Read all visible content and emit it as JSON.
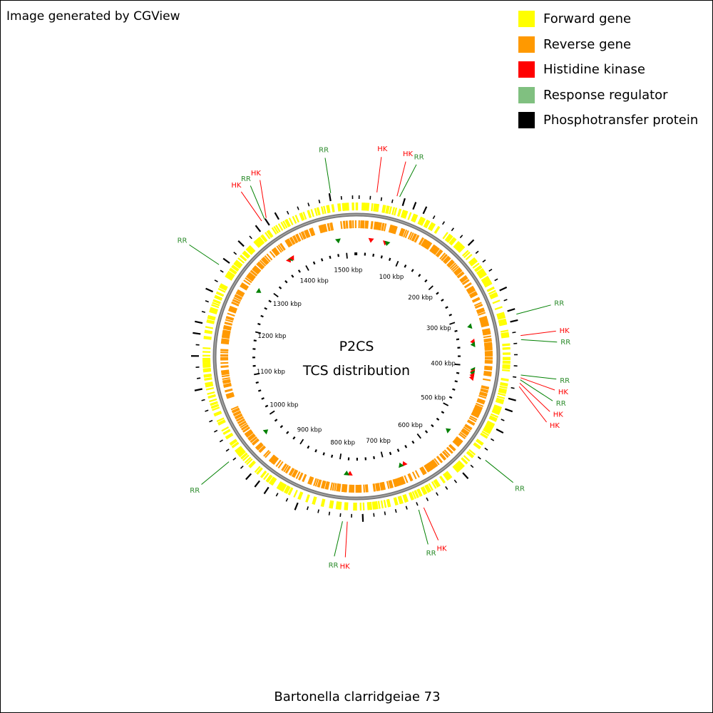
{
  "credit": "Image generated by CGView",
  "legend": [
    {
      "label": "Forward gene",
      "color": "#ffff00"
    },
    {
      "label": "Reverse gene",
      "color": "#ff9900"
    },
    {
      "label": "Histidine kinase",
      "color": "#ff0000"
    },
    {
      "label": "Response regulator",
      "color": "#80c080"
    },
    {
      "label": "Phosphotransfer protein",
      "color": "#000000"
    }
  ],
  "center_title": "P2CS",
  "center_subtitle": "TCS distribution",
  "organism": "Bartonella clarridgeiae 73",
  "genome_kbp": 1523,
  "tick_unit": "kbp",
  "major_ticks_kbp": [
    100,
    200,
    300,
    400,
    500,
    600,
    700,
    800,
    900,
    1000,
    1100,
    1200,
    1300,
    1400,
    1500
  ],
  "feature_labels": [
    {
      "text": "RR",
      "type": "RR",
      "pos_kbp": 1485
    },
    {
      "text": "HK",
      "type": "HK",
      "pos_kbp": 30
    },
    {
      "text": "HK",
      "type": "HK",
      "pos_kbp": 60
    },
    {
      "text": "RR",
      "type": "RR",
      "pos_kbp": 64
    },
    {
      "text": "RR",
      "type": "RR",
      "pos_kbp": 318
    },
    {
      "text": "HK",
      "type": "HK",
      "pos_kbp": 350
    },
    {
      "text": "RR",
      "type": "RR",
      "pos_kbp": 356
    },
    {
      "text": "RR",
      "type": "RR",
      "pos_kbp": 408
    },
    {
      "text": "HK",
      "type": "HK",
      "pos_kbp": 412
    },
    {
      "text": "RR",
      "type": "RR",
      "pos_kbp": 415
    },
    {
      "text": "HK",
      "type": "HK",
      "pos_kbp": 420
    },
    {
      "text": "HK",
      "type": "HK",
      "pos_kbp": 425
    },
    {
      "text": "RR",
      "type": "RR",
      "pos_kbp": 545
    },
    {
      "text": "HK",
      "type": "HK",
      "pos_kbp": 660
    },
    {
      "text": "RR",
      "type": "RR",
      "pos_kbp": 668
    },
    {
      "text": "HK",
      "type": "HK",
      "pos_kbp": 775
    },
    {
      "text": "RR",
      "type": "RR",
      "pos_kbp": 782
    },
    {
      "text": "RR",
      "type": "RR",
      "pos_kbp": 975
    },
    {
      "text": "RR",
      "type": "RR",
      "pos_kbp": 1285
    },
    {
      "text": "HK",
      "type": "HK",
      "pos_kbp": 1375
    },
    {
      "text": "RR",
      "type": "RR",
      "pos_kbp": 1380
    },
    {
      "text": "HK",
      "type": "HK",
      "pos_kbp": 1383
    }
  ],
  "type_colors": {
    "HK": "#ff0000",
    "RR": "#008000",
    "HPT": "#000000"
  },
  "label_colors": {
    "HK": "#ff0000",
    "RR": "#2a8a2a"
  }
}
